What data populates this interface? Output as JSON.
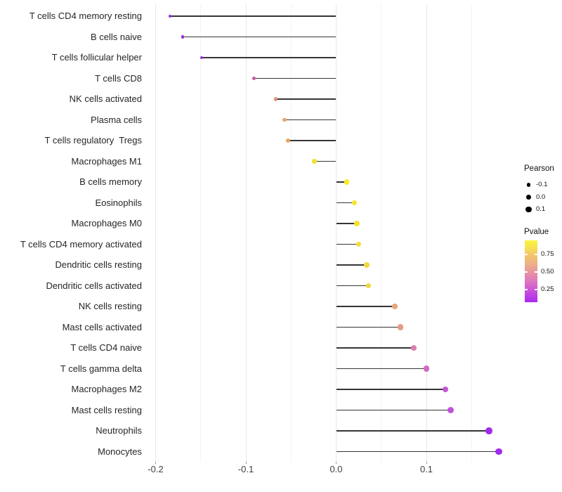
{
  "chart_data": {
    "type": "lollipop",
    "orientation": "horizontal",
    "title": "",
    "xlabel": "",
    "ylabel": "",
    "xlim": [
      -0.214,
      0.186
    ],
    "grid": "vertical-major-and-minor",
    "x_ticks_major": [
      -0.2,
      -0.1,
      0.0,
      0.1
    ],
    "x_tick_labels": [
      "-0.2",
      "-0.1",
      "0.0",
      "0.1"
    ],
    "x_ticks_minor": [
      -0.15,
      -0.05,
      0.05,
      0.15
    ],
    "categories": [
      "T cells CD4 memory resting",
      "B cells naive",
      "T cells follicular helper",
      "T cells CD8",
      "NK cells activated",
      "Plasma cells",
      "T cells regulatory  Tregs",
      "Macrophages M1",
      "B cells memory",
      "Eosinophils",
      "Macrophages M0",
      "T cells CD4 memory activated",
      "Dendritic cells resting",
      "Dendritic cells activated",
      "NK cells resting",
      "Mast cells activated",
      "T cells CD4 naive",
      "T cells gamma delta",
      "Macrophages M2",
      "Mast cells resting",
      "Neutrophils",
      "Monocytes"
    ],
    "series": [
      {
        "name": "Pearson",
        "values": [
          -0.184,
          -0.17,
          -0.149,
          -0.091,
          -0.067,
          -0.057,
          -0.053,
          -0.024,
          0.012,
          0.02,
          0.023,
          0.025,
          0.034,
          0.036,
          0.065,
          0.071,
          0.086,
          0.1,
          0.121,
          0.127,
          0.169,
          0.18
        ]
      },
      {
        "name": "Pvalue",
        "values": [
          0.08,
          0.09,
          0.1,
          0.38,
          0.55,
          0.63,
          0.63,
          0.85,
          0.9,
          0.88,
          0.87,
          0.86,
          0.83,
          0.82,
          0.62,
          0.58,
          0.45,
          0.35,
          0.24,
          0.23,
          0.1,
          0.11
        ]
      }
    ],
    "point_colors": [
      "#9530DE",
      "#9A2BE2",
      "#9C2EE2",
      "#C35C9E",
      "#DE8F80",
      "#E9A365",
      "#E9A462",
      "#F2E12E",
      "#F7EC27",
      "#F5E72C",
      "#F4E230",
      "#F2DE35",
      "#F0D93B",
      "#EFD73E",
      "#E8A378",
      "#E59A82",
      "#DB7FAC",
      "#D468BE",
      "#C455D8",
      "#C252DC",
      "#A02BEA",
      "#A229EE"
    ],
    "stem_color": "#353535",
    "legend": {
      "size_legend": {
        "title": "Pearson",
        "dot_color": "#000000",
        "entries": [
          {
            "label": "-0.1",
            "value": -0.1
          },
          {
            "label": "0.0",
            "value": 0.0
          },
          {
            "label": "0.1",
            "value": 0.1
          }
        ]
      },
      "color_legend": {
        "title": "Pvalue",
        "tick_labels": [
          "0.75",
          "0.50",
          "0.25"
        ],
        "tick_values": [
          0.75,
          0.5,
          0.25
        ],
        "range": [
          0.07,
          0.95
        ],
        "gradient_stops_bottom_to_top": [
          {
            "pos": 0.0,
            "color": "#AC28F0"
          },
          {
            "pos": 0.205,
            "color": "#CC55D8"
          },
          {
            "pos": 0.32,
            "color": "#DC73C2"
          },
          {
            "pos": 0.49,
            "color": "#E795A2"
          },
          {
            "pos": 0.62,
            "color": "#EEAF85"
          },
          {
            "pos": 0.77,
            "color": "#F3C76B"
          },
          {
            "pos": 0.89,
            "color": "#F7E24F"
          },
          {
            "pos": 1.0,
            "color": "#FAF53B"
          }
        ]
      }
    }
  }
}
